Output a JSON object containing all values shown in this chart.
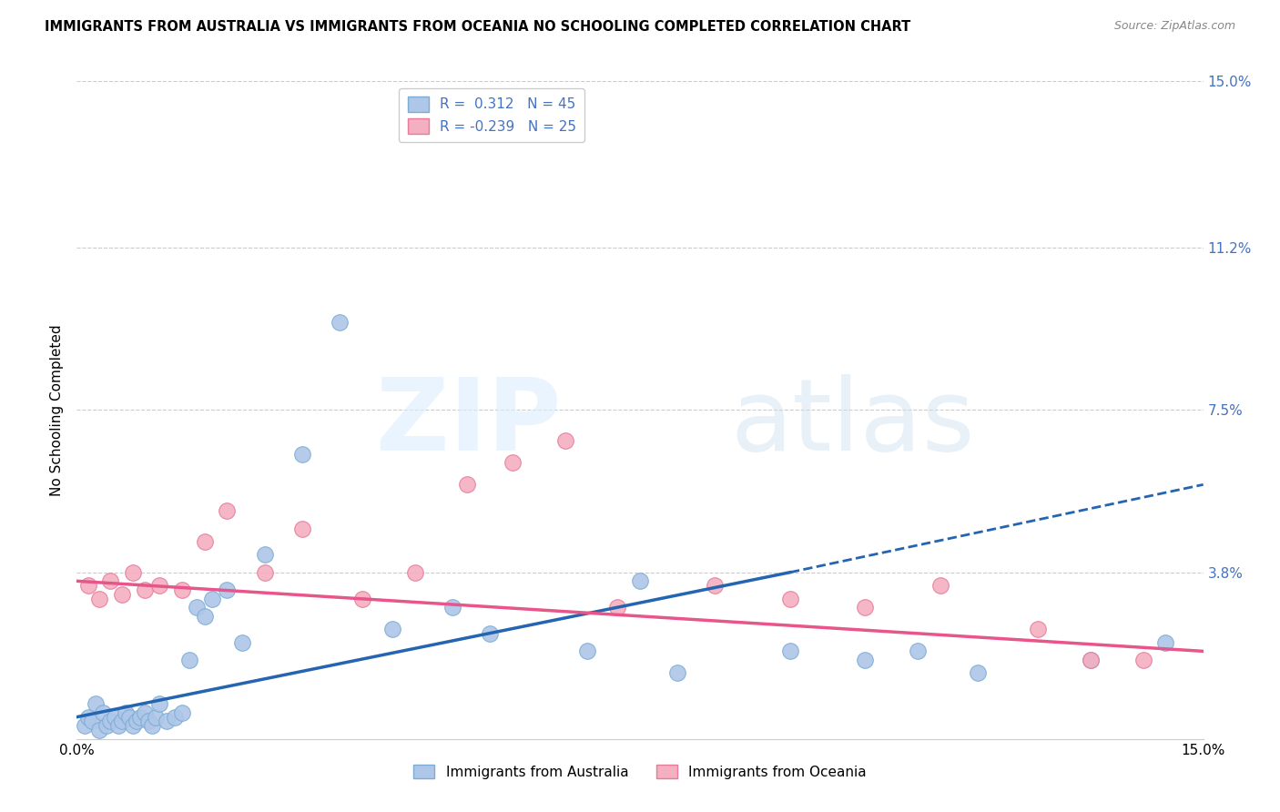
{
  "title": "IMMIGRANTS FROM AUSTRALIA VS IMMIGRANTS FROM OCEANIA NO SCHOOLING COMPLETED CORRELATION CHART",
  "source": "Source: ZipAtlas.com",
  "ylabel": "No Schooling Completed",
  "ytick_labels": [
    "3.8%",
    "7.5%",
    "11.2%",
    "15.0%"
  ],
  "ytick_values": [
    3.8,
    7.5,
    11.2,
    15.0
  ],
  "xlim": [
    0.0,
    15.0
  ],
  "ylim": [
    0.0,
    15.0
  ],
  "australia_color": "#aec6e8",
  "australia_edge": "#7badd4",
  "oceania_color": "#f4afc0",
  "oceania_edge": "#e87a9a",
  "trendline_aus_color": "#2464b0",
  "trendline_oce_color": "#e8558a",
  "aus_scatter_x": [
    0.1,
    0.15,
    0.2,
    0.25,
    0.3,
    0.35,
    0.4,
    0.45,
    0.5,
    0.55,
    0.6,
    0.65,
    0.7,
    0.75,
    0.8,
    0.85,
    0.9,
    0.95,
    1.0,
    1.05,
    1.1,
    1.2,
    1.3,
    1.4,
    1.5,
    1.6,
    1.7,
    1.8,
    2.0,
    2.2,
    2.5,
    3.0,
    3.5,
    4.2,
    5.0,
    5.5,
    6.8,
    7.5,
    8.0,
    9.5,
    10.5,
    11.2,
    12.0,
    13.5,
    14.5
  ],
  "aus_scatter_y": [
    0.3,
    0.5,
    0.4,
    0.8,
    0.2,
    0.6,
    0.3,
    0.4,
    0.5,
    0.3,
    0.4,
    0.6,
    0.5,
    0.3,
    0.4,
    0.5,
    0.6,
    0.4,
    0.3,
    0.5,
    0.8,
    0.4,
    0.5,
    0.6,
    1.8,
    3.0,
    2.8,
    3.2,
    3.4,
    2.2,
    4.2,
    6.5,
    9.5,
    2.5,
    3.0,
    2.4,
    2.0,
    3.6,
    1.5,
    2.0,
    1.8,
    2.0,
    1.5,
    1.8,
    2.2
  ],
  "oce_scatter_x": [
    0.15,
    0.3,
    0.45,
    0.6,
    0.75,
    0.9,
    1.1,
    1.4,
    1.7,
    2.0,
    2.5,
    3.0,
    3.8,
    4.5,
    5.2,
    5.8,
    6.5,
    7.2,
    8.5,
    9.5,
    10.5,
    11.5,
    12.8,
    13.5,
    14.2
  ],
  "oce_scatter_y": [
    3.5,
    3.2,
    3.6,
    3.3,
    3.8,
    3.4,
    3.5,
    3.4,
    4.5,
    5.2,
    3.8,
    4.8,
    3.2,
    3.8,
    5.8,
    6.3,
    6.8,
    3.0,
    3.5,
    3.2,
    3.0,
    3.5,
    2.5,
    1.8,
    1.8
  ],
  "aus_trendline_x0": 0.0,
  "aus_trendline_y0": 0.5,
  "aus_trendline_x1": 9.5,
  "aus_trendline_y1": 3.8,
  "aus_dash_x0": 9.5,
  "aus_dash_y0": 3.8,
  "aus_dash_x1": 15.0,
  "aus_dash_y1": 5.8,
  "oce_trendline_x0": 0.0,
  "oce_trendline_y0": 3.6,
  "oce_trendline_x1": 15.0,
  "oce_trendline_y1": 2.0
}
